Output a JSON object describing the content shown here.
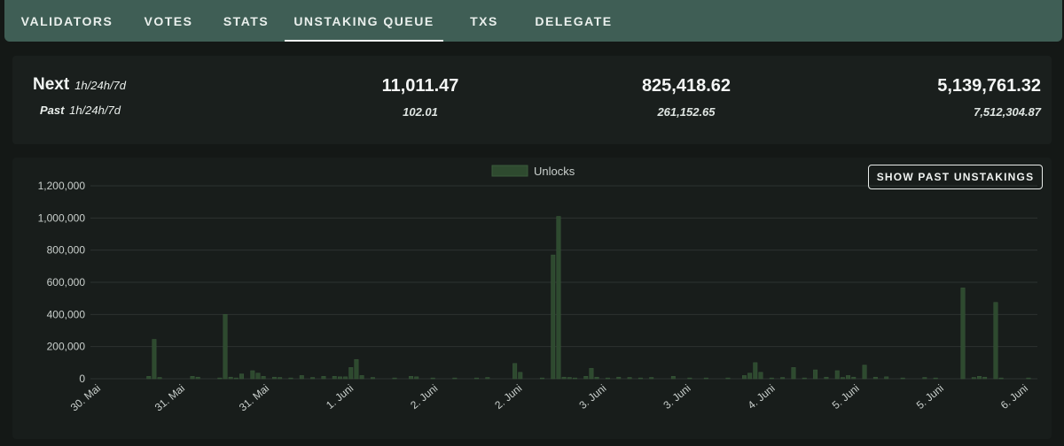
{
  "nav": {
    "tabs": [
      {
        "label": "VALIDATORS",
        "active": false
      },
      {
        "label": "VOTES",
        "active": false
      },
      {
        "label": "STATS",
        "active": false
      },
      {
        "label": "UNSTAKING QUEUE",
        "active": true
      },
      {
        "label": "TXS",
        "active": false
      },
      {
        "label": "DELEGATE",
        "active": false
      }
    ]
  },
  "stats": {
    "next_label": "Next",
    "next_period": "1h/24h/7d",
    "past_label": "Past",
    "past_period": "1h/24h/7d",
    "next_1h": "11,011.47",
    "next_24h": "825,418.62",
    "next_7d": "5,139,761.32",
    "past_1h": "102.01",
    "past_24h": "261,152.65",
    "past_7d": "7,512,304.87"
  },
  "controls": {
    "show_past_label": "SHOW PAST UNSTAKINGS"
  },
  "colors": {
    "bar": "#2e4a2f",
    "bar_stroke": "#3a5a3b",
    "grid": "#2c3230",
    "tick_text": "#c9cfcc"
  },
  "chart_data": {
    "type": "bar",
    "legend": {
      "label": "Unlocks",
      "position": "top-center"
    },
    "ylim": [
      0,
      1200000
    ],
    "yticks": [
      "0",
      "200,000",
      "400,000",
      "600,000",
      "800,000",
      "1,000,000",
      "1,200,000"
    ],
    "ytick_values": [
      0,
      200000,
      400000,
      600000,
      800000,
      1000000,
      1200000
    ],
    "grid": true,
    "xtick_labels": [
      "30. Mai",
      "31. Mai",
      "31. Mai",
      "1. Juni",
      "2. Juni",
      "2. Juni",
      "3. Juni",
      "3. Juni",
      "4. Juni",
      "5. Juni",
      "5. Juni",
      "6. Juni"
    ],
    "x_bar_count": 172,
    "bars": [
      {
        "i": 4,
        "value": 15000
      },
      {
        "i": 5,
        "value": 245000
      },
      {
        "i": 6,
        "value": 8000
      },
      {
        "i": 12,
        "value": 15000
      },
      {
        "i": 13,
        "value": 10000
      },
      {
        "i": 17,
        "value": 5000
      },
      {
        "i": 18,
        "value": 400000
      },
      {
        "i": 19,
        "value": 10000
      },
      {
        "i": 20,
        "value": 5000
      },
      {
        "i": 21,
        "value": 30000
      },
      {
        "i": 23,
        "value": 50000
      },
      {
        "i": 24,
        "value": 35000
      },
      {
        "i": 25,
        "value": 15000
      },
      {
        "i": 27,
        "value": 10000
      },
      {
        "i": 28,
        "value": 8000
      },
      {
        "i": 30,
        "value": 5000
      },
      {
        "i": 32,
        "value": 20000
      },
      {
        "i": 34,
        "value": 8000
      },
      {
        "i": 36,
        "value": 15000
      },
      {
        "i": 38,
        "value": 15000
      },
      {
        "i": 39,
        "value": 12000
      },
      {
        "i": 40,
        "value": 12000
      },
      {
        "i": 41,
        "value": 70000
      },
      {
        "i": 42,
        "value": 120000
      },
      {
        "i": 43,
        "value": 20000
      },
      {
        "i": 45,
        "value": 8000
      },
      {
        "i": 49,
        "value": 5000
      },
      {
        "i": 52,
        "value": 15000
      },
      {
        "i": 53,
        "value": 12000
      },
      {
        "i": 56,
        "value": 5000
      },
      {
        "i": 60,
        "value": 5000
      },
      {
        "i": 64,
        "value": 5000
      },
      {
        "i": 66,
        "value": 8000
      },
      {
        "i": 71,
        "value": 95000
      },
      {
        "i": 72,
        "value": 40000
      },
      {
        "i": 76,
        "value": 5000
      },
      {
        "i": 78,
        "value": 770000
      },
      {
        "i": 79,
        "value": 1010000
      },
      {
        "i": 80,
        "value": 10000
      },
      {
        "i": 81,
        "value": 8000
      },
      {
        "i": 82,
        "value": 5000
      },
      {
        "i": 84,
        "value": 15000
      },
      {
        "i": 85,
        "value": 65000
      },
      {
        "i": 86,
        "value": 10000
      },
      {
        "i": 88,
        "value": 5000
      },
      {
        "i": 90,
        "value": 10000
      },
      {
        "i": 92,
        "value": 8000
      },
      {
        "i": 94,
        "value": 5000
      },
      {
        "i": 96,
        "value": 8000
      },
      {
        "i": 100,
        "value": 15000
      },
      {
        "i": 103,
        "value": 5000
      },
      {
        "i": 106,
        "value": 5000
      },
      {
        "i": 110,
        "value": 5000
      },
      {
        "i": 113,
        "value": 20000
      },
      {
        "i": 114,
        "value": 35000
      },
      {
        "i": 115,
        "value": 100000
      },
      {
        "i": 116,
        "value": 40000
      },
      {
        "i": 118,
        "value": 5000
      },
      {
        "i": 120,
        "value": 8000
      },
      {
        "i": 122,
        "value": 70000
      },
      {
        "i": 124,
        "value": 5000
      },
      {
        "i": 126,
        "value": 55000
      },
      {
        "i": 128,
        "value": 10000
      },
      {
        "i": 130,
        "value": 50000
      },
      {
        "i": 131,
        "value": 8000
      },
      {
        "i": 132,
        "value": 20000
      },
      {
        "i": 133,
        "value": 10000
      },
      {
        "i": 135,
        "value": 85000
      },
      {
        "i": 137,
        "value": 10000
      },
      {
        "i": 139,
        "value": 12000
      },
      {
        "i": 142,
        "value": 5000
      },
      {
        "i": 146,
        "value": 8000
      },
      {
        "i": 148,
        "value": 5000
      },
      {
        "i": 153,
        "value": 565000
      },
      {
        "i": 155,
        "value": 8000
      },
      {
        "i": 156,
        "value": 15000
      },
      {
        "i": 157,
        "value": 10000
      },
      {
        "i": 159,
        "value": 475000
      },
      {
        "i": 160,
        "value": 5000
      },
      {
        "i": 165,
        "value": 5000
      },
      {
        "i": 170,
        "value": 5000
      }
    ]
  }
}
